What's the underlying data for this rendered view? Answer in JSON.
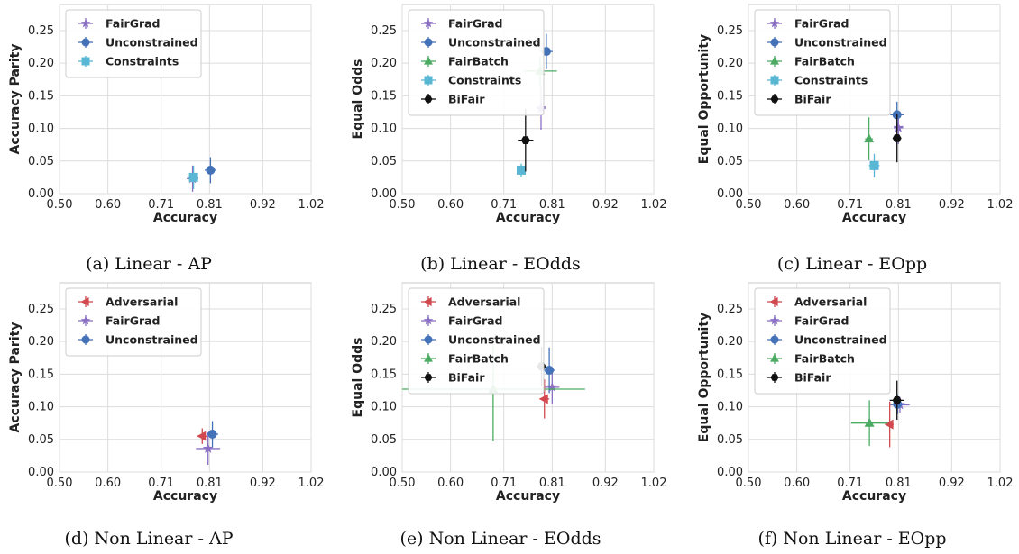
{
  "colors": {
    "Adversarial": "#d1494e",
    "FairGrad": "#8a6fc4",
    "Unconstrained": "#4472b8",
    "FairBatch": "#4bab62",
    "Constraints": "#5ab7d4",
    "BiFair": "#111111"
  },
  "markers": {
    "Adversarial": "left-triangle",
    "FairGrad": "star",
    "Unconstrained": "circle",
    "FairBatch": "up-triangle",
    "Constraints": "square",
    "BiFair": "hexagon"
  },
  "chart_data": [
    {
      "id": "a",
      "type": "scatter",
      "caption": "(a) Linear - AP",
      "xlabel": "Accuracy",
      "ylabel": "Accuracy Parity",
      "xlim": [
        0.5,
        1.02
      ],
      "ylim": [
        0.0,
        0.29
      ],
      "xticks": [
        "0.50",
        "0.60",
        "0.71",
        "0.81",
        "0.92",
        "1.02"
      ],
      "yticks": [
        "0.00",
        "0.05",
        "0.10",
        "0.15",
        "0.20",
        "0.25"
      ],
      "grid": true,
      "legend_position": "top-left",
      "series": [
        {
          "name": "FairGrad",
          "x": 0.775,
          "y": 0.023,
          "xerr": 0.012,
          "yerr": 0.02
        },
        {
          "name": "Unconstrained",
          "x": 0.812,
          "y": 0.036,
          "xerr": 0.012,
          "yerr": 0.02
        },
        {
          "name": "Constraints",
          "x": 0.777,
          "y": 0.025,
          "xerr": 0.01,
          "yerr": 0.018
        }
      ]
    },
    {
      "id": "b",
      "type": "scatter",
      "caption": "(b) Linear - EOdds",
      "xlabel": "Accuracy",
      "ylabel": "Equal Odds",
      "xlim": [
        0.5,
        1.02
      ],
      "ylim": [
        0.0,
        0.29
      ],
      "xticks": [
        "0.50",
        "0.60",
        "0.71",
        "0.81",
        "0.92",
        "1.02"
      ],
      "yticks": [
        "0.00",
        "0.05",
        "0.10",
        "0.15",
        "0.20",
        "0.25"
      ],
      "grid": true,
      "legend_position": "top-left",
      "series": [
        {
          "name": "FairGrad",
          "x": 0.787,
          "y": 0.131,
          "xerr": 0.01,
          "yerr": 0.033
        },
        {
          "name": "Unconstrained",
          "x": 0.798,
          "y": 0.218,
          "xerr": 0.013,
          "yerr": 0.027
        },
        {
          "name": "FairBatch",
          "x": 0.785,
          "y": 0.188,
          "xerr": 0.035,
          "yerr": 0.023
        },
        {
          "name": "Constraints",
          "x": 0.746,
          "y": 0.036,
          "xerr": 0.008,
          "yerr": 0.01
        },
        {
          "name": "BiFair",
          "x": 0.755,
          "y": 0.082,
          "xerr": 0.016,
          "yerr": 0.048
        }
      ]
    },
    {
      "id": "c",
      "type": "scatter",
      "caption": "(c) Linear - EOpp",
      "xlabel": "Accuracy",
      "ylabel": "Equal Opportunity",
      "xlim": [
        0.5,
        1.02
      ],
      "ylim": [
        0.0,
        0.29
      ],
      "xticks": [
        "0.50",
        "0.60",
        "0.71",
        "0.81",
        "0.92",
        "1.02"
      ],
      "yticks": [
        "0.00",
        "0.05",
        "0.10",
        "0.15",
        "0.20",
        "0.25"
      ],
      "grid": true,
      "legend_position": "top-left",
      "series": [
        {
          "name": "FairGrad",
          "x": 0.81,
          "y": 0.101,
          "xerr": 0.01,
          "yerr": 0.025
        },
        {
          "name": "Unconstrained",
          "x": 0.807,
          "y": 0.121,
          "xerr": 0.014,
          "yerr": 0.02
        },
        {
          "name": "FairBatch",
          "x": 0.749,
          "y": 0.084,
          "xerr": 0.008,
          "yerr": 0.033
        },
        {
          "name": "Constraints",
          "x": 0.76,
          "y": 0.043,
          "xerr": 0.011,
          "yerr": 0.018
        },
        {
          "name": "BiFair",
          "x": 0.807,
          "y": 0.085,
          "xerr": 0.008,
          "yerr": 0.037
        }
      ]
    },
    {
      "id": "d",
      "type": "scatter",
      "caption": "(d) Non Linear - AP",
      "xlabel": "Accuracy",
      "ylabel": "Accuracy Parity",
      "xlim": [
        0.5,
        1.02
      ],
      "ylim": [
        0.0,
        0.29
      ],
      "xticks": [
        "0.50",
        "0.60",
        "0.71",
        "0.81",
        "0.92",
        "1.02"
      ],
      "yticks": [
        "0.00",
        "0.05",
        "0.10",
        "0.15",
        "0.20",
        "0.25"
      ],
      "grid": true,
      "legend_position": "top-left",
      "series": [
        {
          "name": "Adversarial",
          "x": 0.795,
          "y": 0.055,
          "xerr": 0.01,
          "yerr": 0.012
        },
        {
          "name": "FairGrad",
          "x": 0.807,
          "y": 0.036,
          "xerr": 0.025,
          "yerr": 0.025
        },
        {
          "name": "Unconstrained",
          "x": 0.816,
          "y": 0.058,
          "xerr": 0.012,
          "yerr": 0.02
        }
      ]
    },
    {
      "id": "e",
      "type": "scatter",
      "caption": "(e) Non Linear - EOdds",
      "xlabel": "Accuracy",
      "ylabel": "Equal Odds",
      "xlim": [
        0.5,
        1.02
      ],
      "ylim": [
        0.0,
        0.29
      ],
      "xticks": [
        "0.50",
        "0.60",
        "0.71",
        "0.81",
        "0.92",
        "1.02"
      ],
      "yticks": [
        "0.00",
        "0.05",
        "0.10",
        "0.15",
        "0.20",
        "0.25"
      ],
      "grid": true,
      "legend_position": "top-left",
      "series": [
        {
          "name": "Adversarial",
          "x": 0.794,
          "y": 0.112,
          "xerr": 0.01,
          "yerr": 0.03
        },
        {
          "name": "FairGrad",
          "x": 0.81,
          "y": 0.13,
          "xerr": 0.015,
          "yerr": 0.025
        },
        {
          "name": "Unconstrained",
          "x": 0.804,
          "y": 0.156,
          "xerr": 0.012,
          "yerr": 0.035
        },
        {
          "name": "FairBatch",
          "x": 0.688,
          "y": 0.127,
          "xerr": 0.19,
          "yerr": 0.08
        },
        {
          "name": "BiFair",
          "x": 0.788,
          "y": 0.162,
          "xerr": 0.01,
          "yerr": 0.03
        }
      ]
    },
    {
      "id": "f",
      "type": "scatter",
      "caption": "(f) Non Linear - EOpp",
      "xlabel": "Accuracy",
      "ylabel": "Equal Opportunity",
      "xlim": [
        0.5,
        1.02
      ],
      "ylim": [
        0.0,
        0.29
      ],
      "xticks": [
        "0.50",
        "0.60",
        "0.71",
        "0.81",
        "0.92",
        "1.02"
      ],
      "yticks": [
        "0.00",
        "0.05",
        "0.10",
        "0.15",
        "0.20",
        "0.25"
      ],
      "grid": true,
      "legend_position": "top-left",
      "series": [
        {
          "name": "Adversarial",
          "x": 0.792,
          "y": 0.073,
          "xerr": 0.008,
          "yerr": 0.035
        },
        {
          "name": "FairGrad",
          "x": 0.813,
          "y": 0.103,
          "xerr": 0.02,
          "yerr": 0.012
        },
        {
          "name": "Unconstrained",
          "x": 0.808,
          "y": 0.104,
          "xerr": 0.015,
          "yerr": 0.015
        },
        {
          "name": "FairBatch",
          "x": 0.75,
          "y": 0.075,
          "xerr": 0.038,
          "yerr": 0.035
        },
        {
          "name": "BiFair",
          "x": 0.807,
          "y": 0.11,
          "xerr": 0.015,
          "yerr": 0.03
        }
      ]
    }
  ]
}
